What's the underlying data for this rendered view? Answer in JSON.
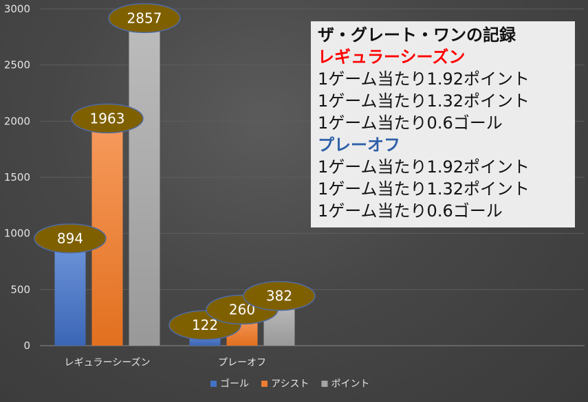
{
  "chart_data": {
    "type": "bar",
    "categories": [
      "レギュラーシーズン",
      "プレーオフ"
    ],
    "series": [
      {
        "name": "ゴール",
        "values": [
          894,
          122
        ],
        "color": "#4472c4"
      },
      {
        "name": "アシスト",
        "values": [
          1963,
          260
        ],
        "color": "#ed7d31"
      },
      {
        "name": "ポイント",
        "values": [
          2857,
          382
        ],
        "color": "#a5a5a5"
      }
    ],
    "ylim": [
      0,
      3000
    ],
    "yticks": [
      0,
      500,
      1000,
      1500,
      2000,
      2500,
      3000
    ],
    "grid": true,
    "legend": "bottom",
    "data_label_style": "olive ellipse callouts",
    "data_label_color": "#7f6000"
  },
  "info_box": {
    "title": "ザ・グレート・ワンの記録",
    "regular_heading": "レギュラーシーズン",
    "regular_lines": [
      "1ゲーム当たり1.92ポイント",
      "1ゲーム当たり1.32ポイント",
      "1ゲーム当たり0.6ゴール"
    ],
    "playoff_heading": "プレーオフ",
    "playoff_lines": [
      "1ゲーム当たり1.92ポイント",
      "1ゲーム当たり1.32ポイント",
      "1ゲーム当たり0.6ゴール"
    ]
  }
}
